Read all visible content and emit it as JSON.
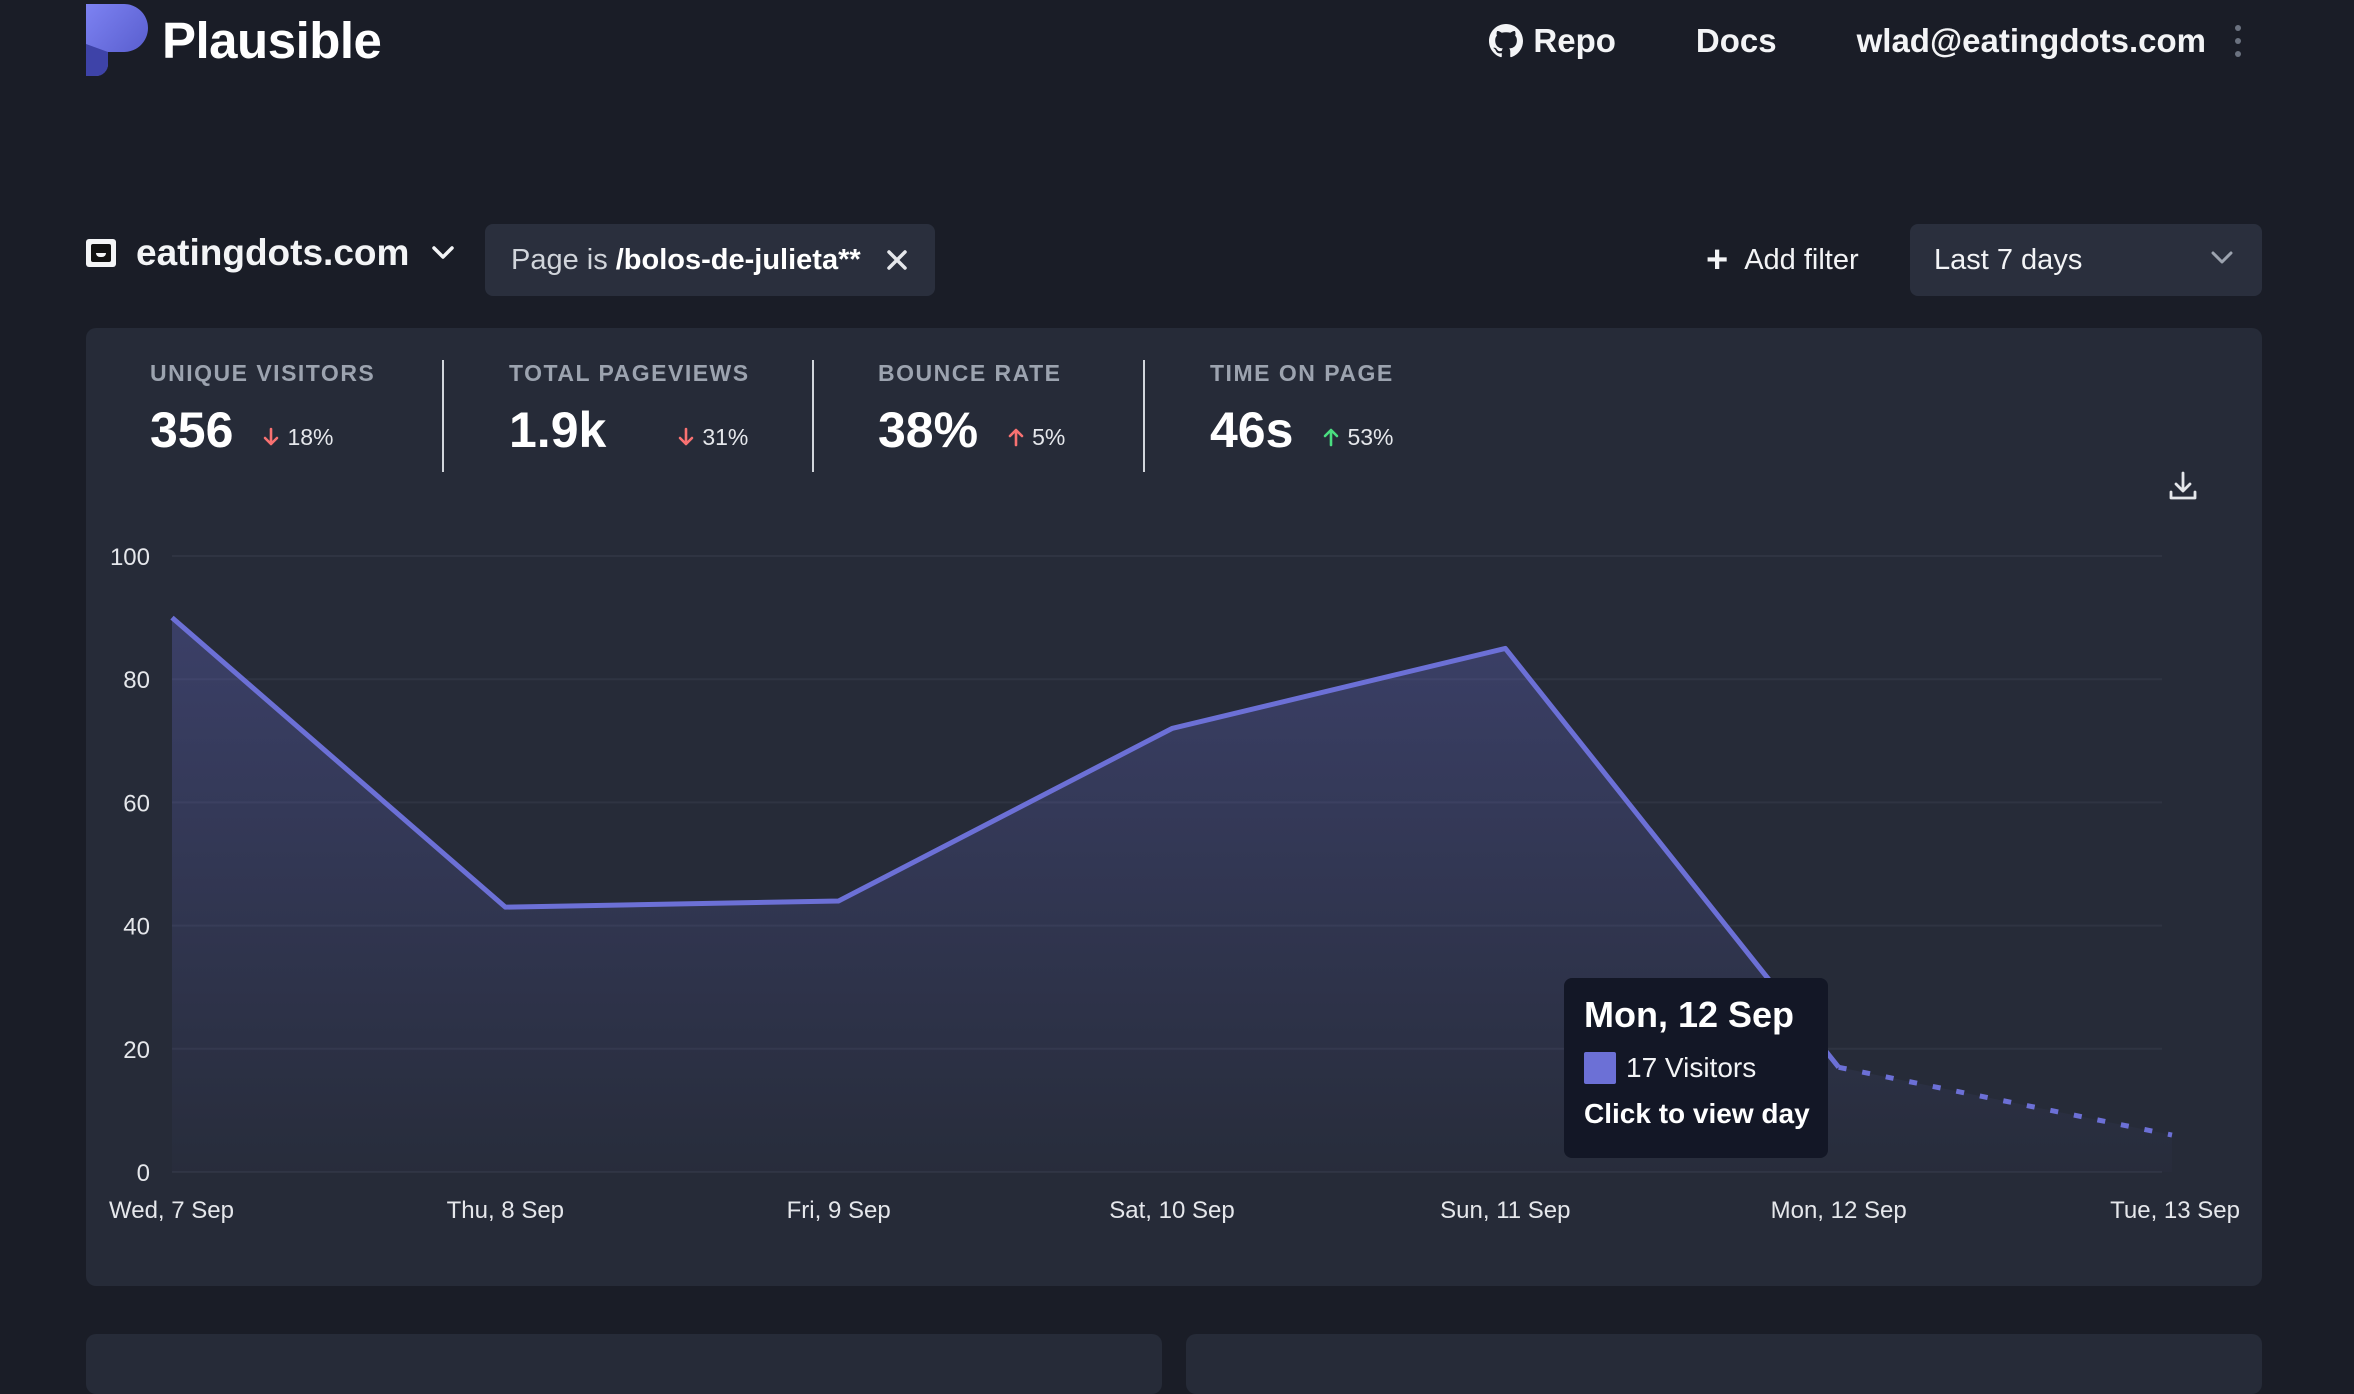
{
  "app": {
    "name": "Plausible",
    "nav": {
      "repo_label": "Repo",
      "docs_label": "Docs",
      "user_email": "wlad@eatingdots.com"
    }
  },
  "filters": {
    "site": "eatingdots.com",
    "active_filter": {
      "prefix": "Page is",
      "value": "/bolos-de-julieta**"
    },
    "add_filter_label": "Add filter",
    "period": "Last 7 days"
  },
  "stats": [
    {
      "label": "UNIQUE VISITORS",
      "value": "356",
      "change": "18%",
      "direction": "down",
      "change_color": "#f87171"
    },
    {
      "label": "TOTAL PAGEVIEWS",
      "value": "1.9k",
      "change": "31%",
      "direction": "down",
      "change_color": "#f87171"
    },
    {
      "label": "BOUNCE RATE",
      "value": "38%",
      "change": "5%",
      "direction": "up",
      "change_color": "#f87171"
    },
    {
      "label": "TIME ON PAGE",
      "value": "46s",
      "change": "53%",
      "direction": "up",
      "change_color": "#4ade80"
    }
  ],
  "chart_data": {
    "type": "line",
    "categories": [
      "Wed, 7 Sep",
      "Thu, 8 Sep",
      "Fri, 9 Sep",
      "Sat, 10 Sep",
      "Sun, 11 Sep",
      "Mon, 12 Sep",
      "Tue, 13 Sep"
    ],
    "series": [
      {
        "values": [
          90,
          43,
          44,
          72,
          85,
          17,
          6
        ]
      }
    ],
    "dashed_from_index": 5,
    "ylim": [
      0,
      100
    ],
    "yticks": [
      0,
      20,
      40,
      60,
      80,
      100
    ],
    "grid": true,
    "line_color": "#6c70d6"
  },
  "tooltip": {
    "title": "Mon, 12 Sep",
    "metric": "17 Visitors",
    "action": "Click to view day"
  },
  "icons": {
    "logo": "plausible-logo-icon",
    "repo": "github-icon",
    "site_dropdown": "chevron-down-icon",
    "filter_remove": "close-icon",
    "add_filter": "plus-icon",
    "download": "download-icon"
  },
  "colors": {
    "background": "#1a1d27",
    "card": "#262b38",
    "accent": "#6c70d6"
  }
}
